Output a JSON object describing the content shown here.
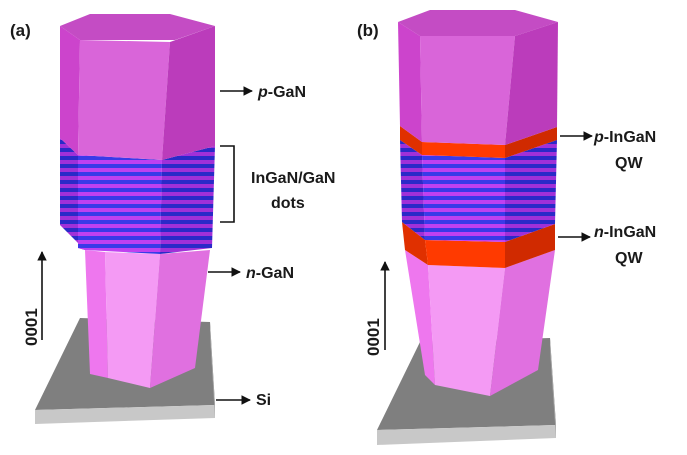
{
  "panels": [
    {
      "id": "a",
      "panel_label": "(a)",
      "axis_label": "0001",
      "layers": {
        "top": "p-GaN",
        "active": "InGaN/GaN dots",
        "bottom": "n-GaN",
        "substrate": "Si"
      },
      "labels": {
        "p_gan_prefix": "p",
        "p_gan_suffix": "-GaN",
        "active_line1": "InGaN/GaN",
        "active_line2": "dots",
        "n_gan_prefix": "n",
        "n_gan_suffix": "-GaN",
        "substrate": "Si"
      }
    },
    {
      "id": "b",
      "panel_label": "(b)",
      "axis_label": "0001",
      "labels": {
        "p_qw_prefix": "p",
        "p_qw_suffix": "-InGaN",
        "p_qw_line2": "QW",
        "n_qw_prefix": "n",
        "n_qw_suffix": "-InGaN",
        "n_qw_line2": "QW"
      }
    }
  ],
  "colors": {
    "p_gan": "#cc44cc",
    "n_gan": "#f080f0",
    "qw_stripe_dark": "#3a3ae8",
    "qw_stripe_light": "#c040f0",
    "quantum_well": "#ff3a00",
    "substrate_top": "#7f7f7f",
    "substrate_side": "#c8c8c8"
  }
}
